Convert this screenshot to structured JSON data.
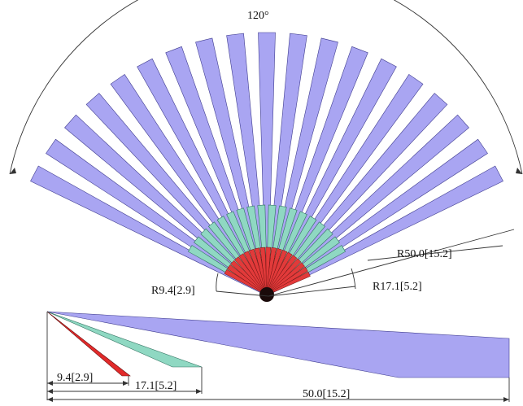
{
  "diagram": {
    "sector_angle_label": "120°",
    "radius_labels": {
      "outer": "R50.0[15.2]",
      "middle": "R17.1[5.2]",
      "inner": "R9.4[2.9]"
    },
    "length_labels": {
      "short": "9.4[2.9]",
      "medium": "17.1[5.2]",
      "long": "50.0[15.2]"
    },
    "colors": {
      "long_plate": "#a9a5f2",
      "medium_plate": "#8fd8c2",
      "short_plate": "#e23a3a"
    }
  }
}
